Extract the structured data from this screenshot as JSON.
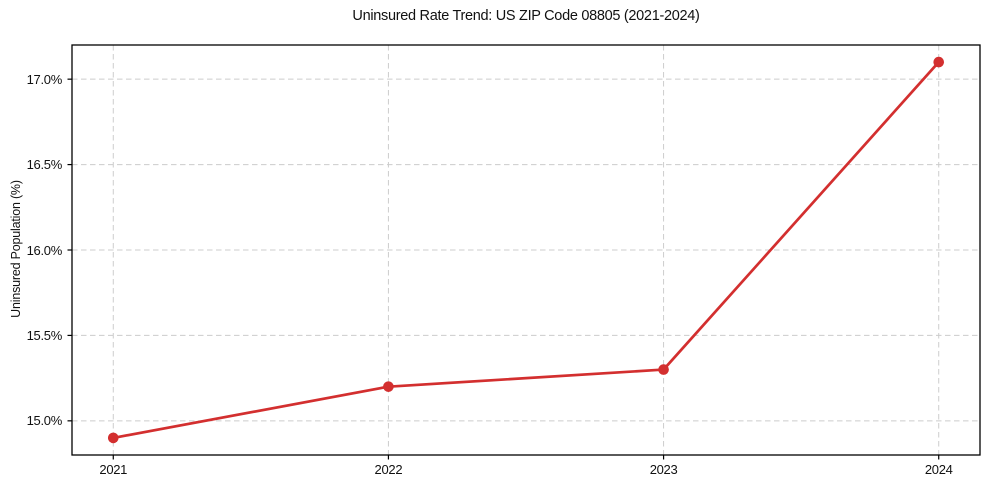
{
  "chart_data": {
    "type": "line",
    "title": "Uninsured Rate Trend: US ZIP Code 08805 (2021-2024)",
    "xlabel": "",
    "ylabel": "Uninsured Population (%)",
    "x": [
      2021,
      2022,
      2023,
      2024
    ],
    "x_tick_labels": [
      "2021",
      "2022",
      "2023",
      "2024"
    ],
    "y_ticks": [
      15.0,
      15.5,
      16.0,
      16.5,
      17.0
    ],
    "y_tick_labels": [
      "15.0%",
      "15.5%",
      "16.0%",
      "16.5%",
      "17.0%"
    ],
    "series": [
      {
        "values": [
          14.9,
          15.2,
          15.3,
          17.1
        ],
        "color": "#d32f2f",
        "marker": "circle"
      }
    ],
    "xlim": [
      2020.85,
      2024.15
    ],
    "ylim": [
      14.8,
      17.2
    ],
    "grid": true,
    "grid_line_style": "dashed",
    "grid_color": "#cccccc",
    "axis_color": "#000000",
    "background_color": "#ffffff",
    "legend": "none"
  }
}
